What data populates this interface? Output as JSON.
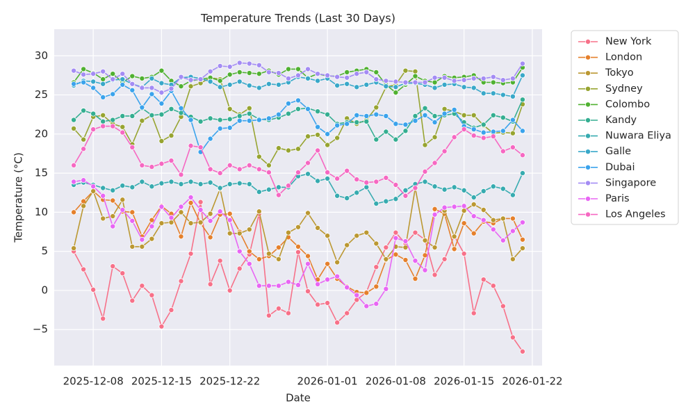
{
  "chart_data": {
    "type": "line",
    "title": "Temperature Trends (Last 30 Days)",
    "x_label": "Date",
    "y_label": "Temperature (°C)",
    "x": [
      "2025-12-06",
      "2025-12-07",
      "2025-12-08",
      "2025-12-09",
      "2025-12-10",
      "2025-12-11",
      "2025-12-12",
      "2025-12-13",
      "2025-12-14",
      "2025-12-15",
      "2025-12-16",
      "2025-12-17",
      "2025-12-18",
      "2025-12-19",
      "2025-12-20",
      "2025-12-21",
      "2025-12-22",
      "2025-12-23",
      "2025-12-24",
      "2025-12-25",
      "2025-12-26",
      "2025-12-27",
      "2025-12-28",
      "2025-12-29",
      "2025-12-30",
      "2025-12-31",
      "2026-01-01",
      "2026-01-02",
      "2026-01-03",
      "2026-01-04",
      "2026-01-05",
      "2026-01-06",
      "2026-01-07",
      "2026-01-08",
      "2026-01-09",
      "2026-01-10",
      "2026-01-11",
      "2026-01-12",
      "2026-01-13",
      "2026-01-14",
      "2026-01-15",
      "2026-01-16",
      "2026-01-17",
      "2026-01-18",
      "2026-01-19",
      "2026-01-20",
      "2026-01-21"
    ],
    "xlim": [
      "2025-12-04",
      "2026-01-23"
    ],
    "xticks": [
      "2025-12-08",
      "2025-12-15",
      "2025-12-22",
      "2026-01-01",
      "2026-01-08",
      "2026-01-15",
      "2026-01-22"
    ],
    "ylim": [
      -9.6,
      33.4
    ],
    "yticks": [
      {
        "value": -5,
        "label": "−5"
      },
      0,
      5,
      10,
      15,
      20,
      25,
      30
    ],
    "grid": true,
    "legend": "outside upper right",
    "series": [
      {
        "name": "New York",
        "color": "#f77189",
        "values": [
          5,
          2.7,
          0.1,
          -3.6,
          3.1,
          2.2,
          -1.3,
          0.6,
          -0.6,
          -4.6,
          -2.5,
          1.2,
          4.7,
          11.3,
          0.8,
          3.8,
          0,
          2.8,
          4.6,
          9.8,
          -3.2,
          -2.3,
          -2.9,
          4.9,
          -0.1,
          -1.8,
          -1.6,
          -4.1,
          -2.9,
          -1.2,
          -0.2,
          3,
          5.5,
          7.4,
          6,
          7.4,
          6.5,
          2,
          4,
          7,
          4.7,
          -2.9,
          1.4,
          0.6,
          -2,
          -6,
          -7.8
        ]
      },
      {
        "name": "London",
        "color": "#e5802c",
        "values": [
          10,
          11.4,
          12.7,
          11.6,
          11.5,
          10.1,
          10,
          6.9,
          9,
          10.8,
          9.8,
          6.9,
          11.2,
          8.6,
          6.8,
          9.7,
          9.8,
          7.5,
          5,
          4,
          4.4,
          5.5,
          6.8,
          5.6,
          4.4,
          1.4,
          3.4,
          1.5,
          0.5,
          -0.2,
          -0.3,
          0.5,
          3.9,
          4.6,
          3.9,
          1.5,
          4.5,
          10.4,
          9.8,
          5.3,
          8.6,
          7.3,
          8.8,
          8.6,
          9.2,
          9.2,
          6.5
        ]
      },
      {
        "name": "Tokyo",
        "color": "#bb9832",
        "values": [
          5.4,
          10.8,
          12.7,
          9.2,
          9.5,
          11.6,
          5.6,
          5.6,
          6.6,
          8.6,
          8.7,
          10,
          8.6,
          8.7,
          9.8,
          13,
          7.3,
          7.3,
          7.8,
          10.1,
          4.7,
          4,
          7.4,
          8.1,
          9.9,
          8,
          7,
          3.6,
          5.8,
          7,
          7.4,
          6,
          4,
          5.6,
          5.5,
          13.1,
          6.4,
          5.5,
          10.2,
          6.9,
          10.2,
          11,
          10.3,
          9,
          9.2,
          4,
          5.4
        ]
      },
      {
        "name": "Sydney",
        "color": "#97a431",
        "values": [
          20.7,
          19.3,
          22.2,
          22.4,
          21.3,
          20.9,
          18.7,
          21.7,
          22.4,
          19.1,
          19.8,
          22.2,
          26.1,
          26.5,
          27.2,
          27,
          23.2,
          22.5,
          23.3,
          17.1,
          16,
          18.2,
          17.9,
          18.1,
          19.7,
          19.9,
          18.6,
          19.5,
          22,
          21.3,
          21.8,
          23.4,
          26,
          26.3,
          28.1,
          28,
          18.6,
          19.6,
          23.2,
          22.9,
          22.4,
          22.4,
          21.1,
          20.1,
          20.2,
          20.1,
          23.8
        ]
      },
      {
        "name": "Colombo",
        "color": "#50b131",
        "values": [
          26.6,
          28.3,
          27.8,
          27,
          27.7,
          26.6,
          27.4,
          27.1,
          27.3,
          28.1,
          26.8,
          26.1,
          26.8,
          27,
          27.2,
          26.8,
          27.6,
          27.9,
          27.8,
          27.7,
          28.1,
          27.6,
          28.3,
          28.3,
          27.2,
          27.7,
          27.4,
          27.4,
          27.9,
          28.1,
          28.3,
          27.9,
          26.3,
          25.3,
          26.3,
          27.4,
          26.8,
          26.6,
          27.4,
          27.2,
          27.3,
          27.5,
          26.6,
          26.6,
          26.5,
          26.6,
          28.5
        ]
      },
      {
        "name": "Kandy",
        "color": "#34ae91",
        "values": [
          21.8,
          23,
          22.6,
          21.6,
          21.8,
          22.3,
          22.3,
          23.3,
          22.4,
          22.5,
          23.2,
          22.7,
          22.2,
          21.6,
          22,
          21.8,
          21.9,
          22.3,
          22.6,
          21.9,
          21.8,
          22.1,
          22.6,
          23.2,
          23.3,
          22.9,
          22.5,
          21.3,
          21.5,
          21.5,
          21.6,
          19.3,
          20.3,
          19.3,
          20.4,
          22.3,
          23.3,
          22.3,
          22.4,
          22.6,
          21.5,
          20.8,
          21.2,
          22.4,
          22.1,
          21.6,
          24.4
        ]
      },
      {
        "name": "Nuwara Eliya",
        "color": "#37abb0",
        "values": [
          13.5,
          13.8,
          13.5,
          13.1,
          12.8,
          13.4,
          13.2,
          13.9,
          13.3,
          13.7,
          13.9,
          13.6,
          13.9,
          13.6,
          13.8,
          13.1,
          13.6,
          13.7,
          13.6,
          12.6,
          12.9,
          13.2,
          13.2,
          14.6,
          14.9,
          14,
          14.3,
          12.1,
          11.8,
          12.5,
          13.2,
          11.1,
          11.4,
          11.7,
          12.8,
          13.6,
          13.9,
          13.3,
          12.9,
          13.2,
          12.8,
          11.9,
          12.7,
          13.3,
          13,
          12.2,
          15
        ]
      },
      {
        "name": "Galle",
        "color": "#39a8c9",
        "values": [
          26.2,
          26.8,
          26.7,
          26.4,
          26.9,
          27,
          26.4,
          26,
          27.1,
          26.5,
          26.3,
          27.2,
          27.3,
          27.1,
          26.7,
          26,
          26.3,
          26.7,
          26.2,
          25.9,
          26.4,
          26.3,
          26.6,
          27.3,
          27.1,
          26.8,
          27.1,
          26.2,
          26.4,
          26,
          26.3,
          26.6,
          26.1,
          26,
          26.5,
          26.5,
          26.3,
          25.9,
          26.3,
          26.4,
          26,
          25.9,
          25.2,
          25.2,
          25,
          24.8,
          27.5
        ]
      },
      {
        "name": "Dubai",
        "color": "#3ba3ec",
        "values": [
          26.4,
          26.6,
          25.9,
          24.7,
          25.1,
          26.3,
          25.6,
          23.4,
          25.1,
          23.9,
          25.5,
          23.3,
          21.8,
          17.7,
          19.4,
          20.7,
          20.8,
          21.7,
          21.7,
          21.8,
          22,
          22.5,
          23.9,
          24.3,
          23.2,
          20.9,
          20,
          21.1,
          21.3,
          22.4,
          22.3,
          22.5,
          22.3,
          21.3,
          21.2,
          21.7,
          22.4,
          21.5,
          22.6,
          23.1,
          21,
          20.6,
          20.2,
          20.3,
          20.4,
          21.8,
          20.4
        ]
      },
      {
        "name": "Singapore",
        "color": "#a48cf4",
        "values": [
          28.1,
          27.6,
          27.7,
          28,
          27,
          27.7,
          26.4,
          25.9,
          25.9,
          25.3,
          25.8,
          27.3,
          26.9,
          27,
          28,
          28.7,
          28.6,
          29.1,
          29,
          28.8,
          27.9,
          27.8,
          27.1,
          27.5,
          28.3,
          27.7,
          27.5,
          27.3,
          27.2,
          27.7,
          27.9,
          27,
          26.8,
          26.7,
          26.6,
          26.6,
          26.6,
          27.2,
          27.2,
          26.8,
          26.9,
          27.1,
          27.1,
          27.3,
          26.9,
          27.1,
          29
        ]
      },
      {
        "name": "Paris",
        "color": "#e866f4",
        "values": [
          13.9,
          14.1,
          13.3,
          12.1,
          8.2,
          10.3,
          8.9,
          6.5,
          8.2,
          10.7,
          9.3,
          10.7,
          11.9,
          10.3,
          8.9,
          10.1,
          9,
          5,
          3.4,
          0.6,
          0.6,
          0.6,
          1.1,
          0.7,
          3.4,
          0.8,
          1.4,
          1.8,
          0.4,
          -0.6,
          -2,
          -1.7,
          0.2,
          6.7,
          6.3,
          3.8,
          2.6,
          9.7,
          10.6,
          10.7,
          10.8,
          9.5,
          9,
          7.8,
          6.4,
          7.6,
          8.7
        ]
      },
      {
        "name": "Los Angeles",
        "color": "#f668c2",
        "values": [
          16,
          18.1,
          20.6,
          21,
          21,
          20.2,
          18.3,
          16,
          15.8,
          16.2,
          16.6,
          14.8,
          18.5,
          18.3,
          15.5,
          15,
          16,
          15.5,
          16,
          15.5,
          15.1,
          12.2,
          13.4,
          15.1,
          16.3,
          17.9,
          15.1,
          14.3,
          15.3,
          14.2,
          13.8,
          13.9,
          14.4,
          13.5,
          12.1,
          13.1,
          15.2,
          16.3,
          17.8,
          19.6,
          20.6,
          19.8,
          19.5,
          19.7,
          17.8,
          18.3,
          17.3
        ]
      }
    ]
  }
}
